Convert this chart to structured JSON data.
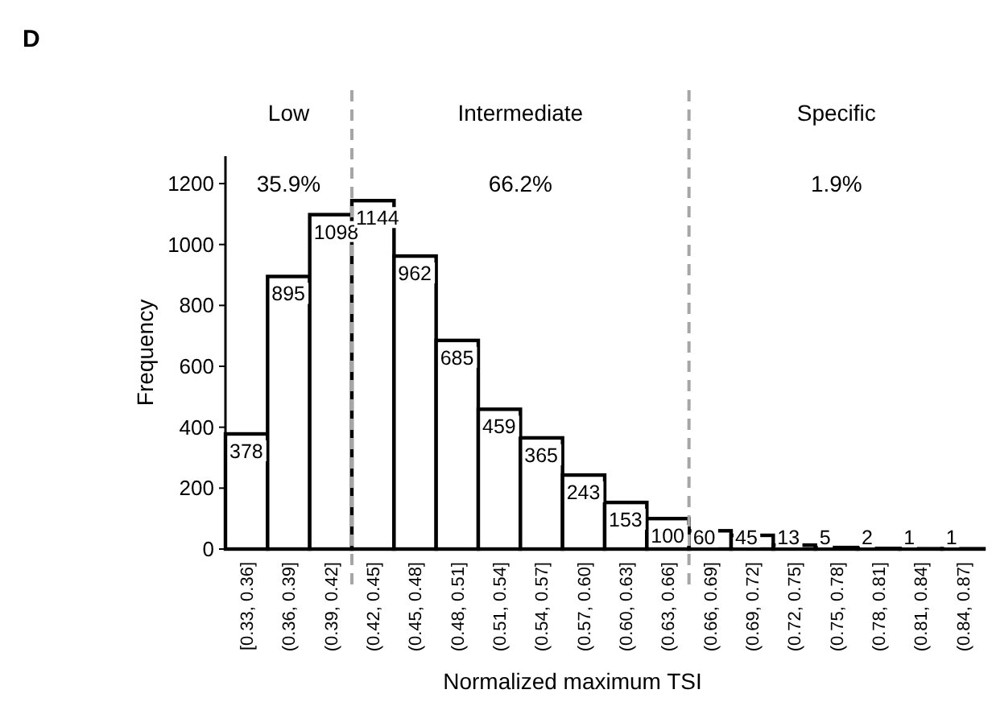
{
  "chart_data": {
    "type": "bar",
    "title": "D",
    "xlabel": "Normalized maximum TSI",
    "ylabel": "Frequency",
    "categories": [
      "[0.33, 0.36]",
      "(0.36, 0.39]",
      "(0.39, 0.42]",
      "(0.42, 0.45]",
      "(0.45, 0.48]",
      "(0.48, 0.51]",
      "(0.51, 0.54]",
      "(0.54, 0.57]",
      "(0.57, 0.60]",
      "(0.60, 0.63]",
      "(0.63, 0.66]",
      "(0.66, 0.69]",
      "(0.69, 0.72]",
      "(0.72, 0.75]",
      "(0.75, 0.78]",
      "(0.78, 0.81]",
      "(0.81, 0.84]",
      "(0.84, 0.87]"
    ],
    "values": [
      378,
      895,
      1098,
      1144,
      962,
      685,
      459,
      365,
      243,
      153,
      100,
      60,
      45,
      13,
      5,
      2,
      1,
      1
    ],
    "color": "#ffffff",
    "data_labels": true,
    "ylim": [
      0,
      1290
    ],
    "yticks": [
      0,
      200,
      400,
      600,
      800,
      1000,
      1200
    ],
    "annotations": [
      "Low",
      "Intermediate",
      "Specific",
      "35.9%",
      "66.2%",
      "1.9%"
    ]
  }
}
